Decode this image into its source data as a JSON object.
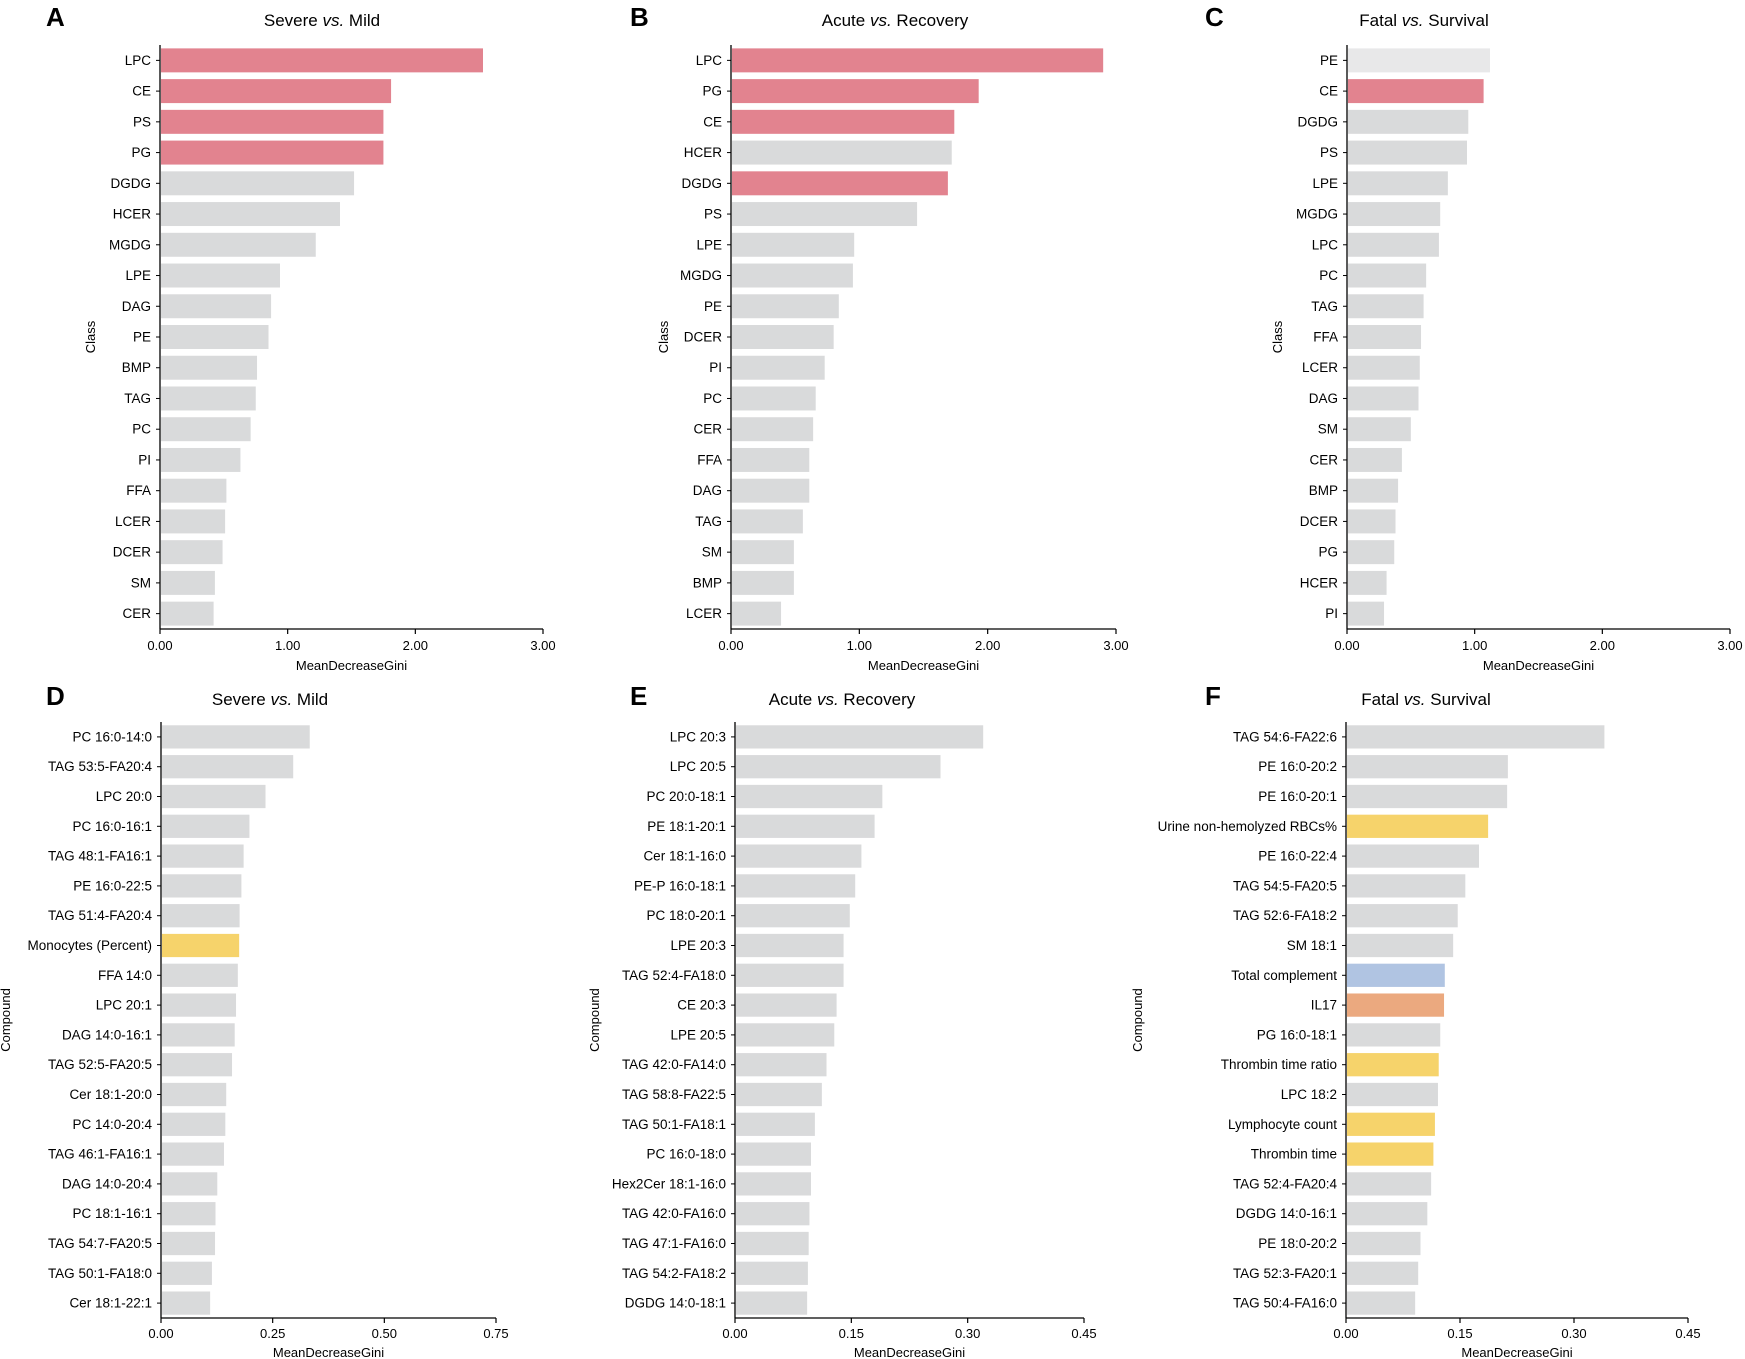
{
  "colors": {
    "gray": "#d9dadb",
    "light_gray": "#e8e8e9",
    "red": "#e2838f",
    "yellow": "#f6d36b",
    "blue": "#b0c4e2",
    "orange": "#eba97f",
    "axis": "#000000"
  },
  "chart_data": [
    {
      "id": "A",
      "letter": "A",
      "type": "bar",
      "orientation": "horizontal",
      "title_pre": "Severe ",
      "title_italic": "vs.",
      "title_post": " Mild",
      "xlabel": "MeanDecreaseGini",
      "ylabel": "Class",
      "xlim": [
        0,
        3
      ],
      "xticks": [
        0,
        1,
        2,
        3
      ],
      "tick_labels": [
        "0.00",
        "1.00",
        "2.00",
        "3.00"
      ],
      "categories": [
        "LPC",
        "CE",
        "PS",
        "PG",
        "DGDG",
        "HCER",
        "MGDG",
        "LPE",
        "DAG",
        "PE",
        "BMP",
        "TAG",
        "PC",
        "PI",
        "FFA",
        "LCER",
        "DCER",
        "SM",
        "CER"
      ],
      "values": [
        2.53,
        1.81,
        1.75,
        1.75,
        1.52,
        1.41,
        1.22,
        0.94,
        0.87,
        0.85,
        0.76,
        0.75,
        0.71,
        0.63,
        0.52,
        0.51,
        0.49,
        0.43,
        0.42
      ],
      "colors": [
        "red",
        "red",
        "red",
        "red",
        "gray",
        "gray",
        "gray",
        "gray",
        "gray",
        "gray",
        "gray",
        "gray",
        "gray",
        "gray",
        "gray",
        "gray",
        "gray",
        "gray",
        "gray"
      ]
    },
    {
      "id": "B",
      "letter": "B",
      "type": "bar",
      "orientation": "horizontal",
      "title_pre": "Acute ",
      "title_italic": "vs.",
      "title_post": " Recovery",
      "xlabel": "MeanDecreaseGini",
      "ylabel": "Class",
      "xlim": [
        0,
        3
      ],
      "xticks": [
        0,
        1,
        2,
        3
      ],
      "tick_labels": [
        "0.00",
        "1.00",
        "2.00",
        "3.00"
      ],
      "categories": [
        "LPC",
        "PG",
        "CE",
        "HCER",
        "DGDG",
        "PS",
        "LPE",
        "MGDG",
        "PE",
        "DCER",
        "PI",
        "PC",
        "CER",
        "FFA",
        "DAG",
        "TAG",
        "SM",
        "BMP",
        "LCER"
      ],
      "values": [
        2.9,
        1.93,
        1.74,
        1.72,
        1.69,
        1.45,
        0.96,
        0.95,
        0.84,
        0.8,
        0.73,
        0.66,
        0.64,
        0.61,
        0.61,
        0.56,
        0.49,
        0.49,
        0.39
      ],
      "colors": [
        "red",
        "red",
        "red",
        "gray",
        "red",
        "gray",
        "gray",
        "gray",
        "gray",
        "gray",
        "gray",
        "gray",
        "gray",
        "gray",
        "gray",
        "gray",
        "gray",
        "gray",
        "gray"
      ]
    },
    {
      "id": "C",
      "letter": "C",
      "type": "bar",
      "orientation": "horizontal",
      "title_pre": "Fatal ",
      "title_italic": "vs.",
      "title_post": " Survival",
      "xlabel": "MeanDecreaseGini",
      "ylabel": "Class",
      "xlim": [
        0,
        3
      ],
      "xticks": [
        0,
        1,
        2,
        3
      ],
      "tick_labels": [
        "0.00",
        "1.00",
        "2.00",
        "3.00"
      ],
      "categories": [
        "PE",
        "CE",
        "DGDG",
        "PS",
        "LPE",
        "MGDG",
        "LPC",
        "PC",
        "TAG",
        "FFA",
        "LCER",
        "DAG",
        "SM",
        "CER",
        "BMP",
        "DCER",
        "PG",
        "HCER",
        "PI"
      ],
      "values": [
        1.12,
        1.07,
        0.95,
        0.94,
        0.79,
        0.73,
        0.72,
        0.62,
        0.6,
        0.58,
        0.57,
        0.56,
        0.5,
        0.43,
        0.4,
        0.38,
        0.37,
        0.31,
        0.29
      ],
      "colors": [
        "light_gray",
        "red",
        "gray",
        "gray",
        "gray",
        "gray",
        "gray",
        "gray",
        "gray",
        "gray",
        "gray",
        "gray",
        "gray",
        "gray",
        "gray",
        "gray",
        "gray",
        "gray",
        "gray"
      ]
    },
    {
      "id": "D",
      "letter": "D",
      "type": "bar",
      "orientation": "horizontal",
      "title_pre": "Severe ",
      "title_italic": "vs.",
      "title_post": " Mild",
      "xlabel": "MeanDecreaseGini",
      "ylabel": "Compound",
      "xlim": [
        0,
        0.75
      ],
      "xticks": [
        0,
        0.25,
        0.5,
        0.75
      ],
      "tick_labels": [
        "0.00",
        "0.25",
        "0.50",
        "0.75"
      ],
      "categories": [
        "PC 16:0-14:0",
        "TAG 53:5-FA20:4",
        "LPC 20:0",
        "PC 16:0-16:1",
        "TAG 48:1-FA16:1",
        "PE 16:0-22:5",
        "TAG 51:4-FA20:4",
        "Monocytes  (Percent)",
        "FFA 14:0",
        "LPC 20:1",
        "DAG 14:0-16:1",
        "TAG 52:5-FA20:5",
        "Cer 18:1-20:0",
        "PC 14:0-20:4",
        "TAG 46:1-FA16:1",
        "DAG 14:0-20:4",
        "PC 18:1-16:1",
        "TAG 54:7-FA20:5",
        "TAG 50:1-FA18:0",
        "Cer 18:1-22:1"
      ],
      "values": [
        0.333,
        0.296,
        0.234,
        0.198,
        0.185,
        0.18,
        0.176,
        0.175,
        0.172,
        0.168,
        0.165,
        0.159,
        0.146,
        0.144,
        0.141,
        0.126,
        0.122,
        0.121,
        0.114,
        0.11
      ],
      "colors": [
        "gray",
        "gray",
        "gray",
        "gray",
        "gray",
        "gray",
        "gray",
        "yellow",
        "gray",
        "gray",
        "gray",
        "gray",
        "gray",
        "gray",
        "gray",
        "gray",
        "gray",
        "gray",
        "gray",
        "gray"
      ]
    },
    {
      "id": "E",
      "letter": "E",
      "type": "bar",
      "orientation": "horizontal",
      "title_pre": "Acute ",
      "title_italic": "vs.",
      "title_post": " Recovery",
      "xlabel": "MeanDecreaseGini",
      "ylabel": "Compound",
      "xlim": [
        0,
        0.45
      ],
      "xticks": [
        0,
        0.15,
        0.3,
        0.45
      ],
      "tick_labels": [
        "0.00",
        "0.15",
        "0.30",
        "0.45"
      ],
      "categories": [
        "LPC 20:3",
        "LPC 20:5",
        "PC 20:0-18:1",
        "PE 18:1-20:1",
        "Cer 18:1-16:0",
        "PE-P 16:0-18:1",
        "PC 18:0-20:1",
        "LPE 20:3",
        "TAG 52:4-FA18:0",
        "CE 20:3",
        "LPE 20:5",
        "TAG 42:0-FA14:0",
        "TAG 58:8-FA22:5",
        "TAG 50:1-FA18:1",
        "PC 16:0-18:0",
        "Hex2Cer 18:1-16:0",
        "TAG 42:0-FA16:0",
        "TAG 47:1-FA16:0",
        "TAG 54:2-FA18:2",
        "DGDG 14:0-18:1"
      ],
      "values": [
        0.32,
        0.265,
        0.19,
        0.18,
        0.163,
        0.155,
        0.148,
        0.14,
        0.14,
        0.131,
        0.128,
        0.118,
        0.112,
        0.103,
        0.098,
        0.098,
        0.096,
        0.095,
        0.094,
        0.093
      ],
      "colors": [
        "gray",
        "gray",
        "gray",
        "gray",
        "gray",
        "gray",
        "gray",
        "gray",
        "gray",
        "gray",
        "gray",
        "gray",
        "gray",
        "gray",
        "gray",
        "gray",
        "gray",
        "gray",
        "gray",
        "gray"
      ]
    },
    {
      "id": "F",
      "letter": "F",
      "type": "bar",
      "orientation": "horizontal",
      "title_pre": "Fatal ",
      "title_italic": "vs.",
      "title_post": " Survival",
      "xlabel": "MeanDecreaseGini",
      "ylabel": "Compound",
      "xlim": [
        0,
        0.45
      ],
      "xticks": [
        0,
        0.15,
        0.3,
        0.45
      ],
      "tick_labels": [
        "0.00",
        "0.15",
        "0.30",
        "0.45"
      ],
      "categories": [
        "TAG 54:6-FA22:6",
        "PE 16:0-20:2",
        "PE 16:0-20:1",
        "Urine non-hemolyzed RBCs%",
        "PE 16:0-22:4",
        "TAG 54:5-FA20:5",
        "TAG 52:6-FA18:2",
        "SM 18:1",
        "Total complement",
        "IL17",
        "PG 16:0-18:1",
        "Thrombin time ratio",
        "LPC 18:2",
        "Lymphocyte count",
        "Thrombin time",
        "TAG 52:4-FA20:4",
        "DGDG 14:0-16:1",
        "PE 18:0-20:2",
        "TAG 52:3-FA20:1",
        "TAG 50:4-FA16:0"
      ],
      "values": [
        0.34,
        0.213,
        0.212,
        0.187,
        0.175,
        0.157,
        0.147,
        0.141,
        0.13,
        0.129,
        0.124,
        0.122,
        0.121,
        0.117,
        0.115,
        0.112,
        0.107,
        0.098,
        0.095,
        0.091
      ],
      "colors": [
        "gray",
        "gray",
        "gray",
        "yellow",
        "gray",
        "gray",
        "gray",
        "gray",
        "blue",
        "orange",
        "gray",
        "yellow",
        "gray",
        "yellow",
        "yellow",
        "gray",
        "gray",
        "gray",
        "gray",
        "gray"
      ]
    }
  ]
}
